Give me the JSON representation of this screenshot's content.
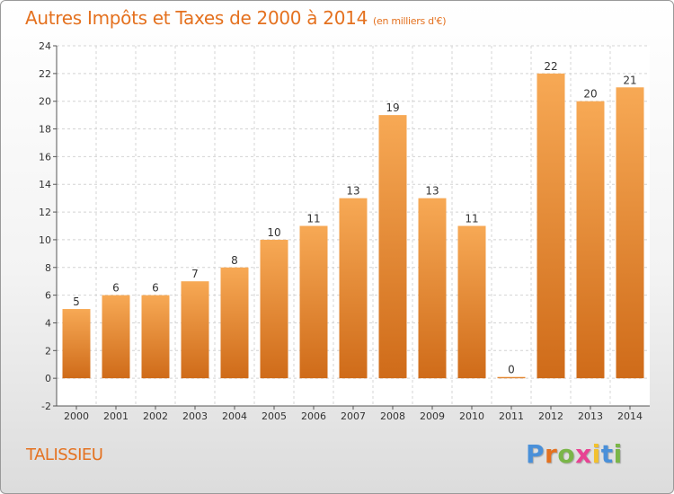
{
  "title": "Autres Impôts et Taxes de 2000 à 2014",
  "subtitle": "(en milliers d'€)",
  "commune": "TALISSIEU",
  "logo": {
    "letters": [
      "P",
      "r",
      "o",
      "x",
      "i",
      "t",
      "i"
    ],
    "colors": [
      "#4a90d9",
      "#e4711f",
      "#7ab648",
      "#e84393",
      "#f2c12e",
      "#4a90d9",
      "#7ab648"
    ]
  },
  "colors": {
    "bar_top": "#f7a955",
    "bar_bottom": "#cf6b19",
    "title": "#e4711f"
  },
  "chart_data": {
    "type": "bar",
    "categories": [
      "2000",
      "2001",
      "2002",
      "2003",
      "2004",
      "2005",
      "2006",
      "2007",
      "2008",
      "2009",
      "2010",
      "2011",
      "2012",
      "2013",
      "2014"
    ],
    "values": [
      5,
      6,
      6,
      7,
      8,
      10,
      11,
      13,
      19,
      13,
      11,
      0,
      22,
      20,
      21
    ],
    "ylim": [
      -2,
      24
    ],
    "yticks": [
      -2,
      0,
      2,
      4,
      6,
      8,
      10,
      12,
      14,
      16,
      18,
      20,
      22,
      24
    ],
    "grid": true
  }
}
